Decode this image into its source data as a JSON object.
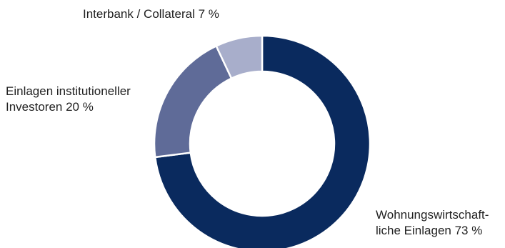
{
  "chart_data": {
    "type": "pie",
    "style": "donut",
    "start": "12 o'clock",
    "direction": "clockwise",
    "slices": [
      {
        "name": "Wohnungswirtschaftliche Einlagen",
        "value": 73,
        "color": "#0a2a5e",
        "label_lines": [
          "Wohnungswirtschaft-",
          "liche Einlagen 73 %"
        ]
      },
      {
        "name": "Einlagen institutioneller Investoren",
        "value": 20,
        "color": "#5f6b98",
        "label_lines": [
          "Einlagen institutioneller",
          "Investoren 20 %"
        ]
      },
      {
        "name": "Interbank/Collateral",
        "value": 7,
        "color": "#a8aecb",
        "label_lines": [
          "Interbank / Collateral 7 %"
        ]
      }
    ]
  }
}
